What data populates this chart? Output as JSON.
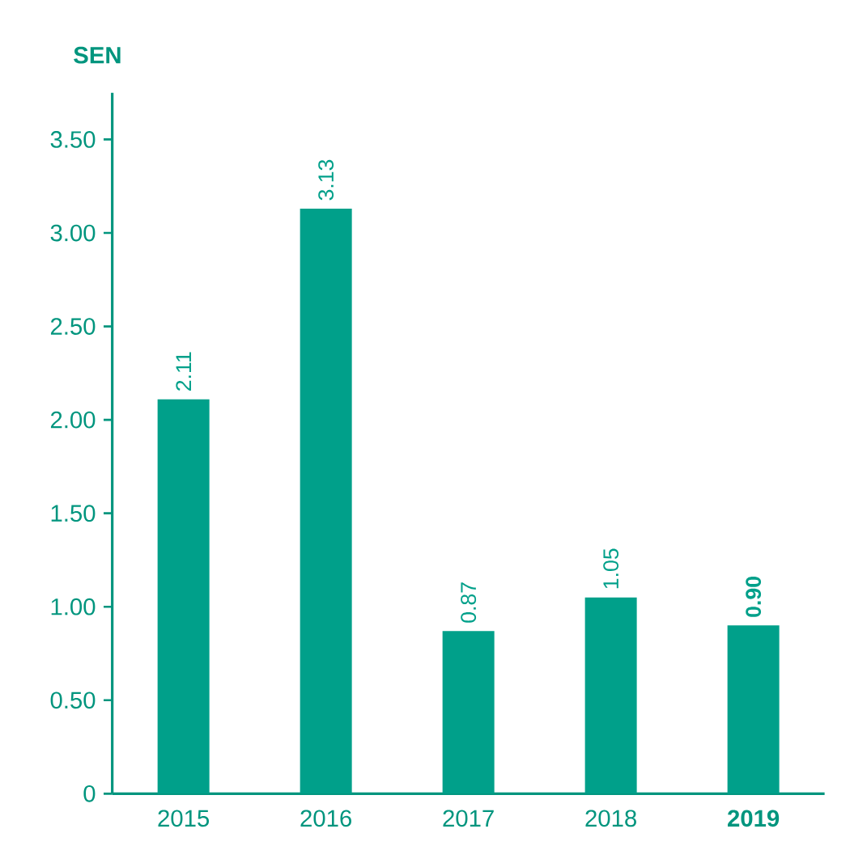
{
  "chart_data": {
    "type": "bar",
    "ylabel": "SEN",
    "categories": [
      "2015",
      "2016",
      "2017",
      "2018",
      "**2019**"
    ],
    "values": [
      2.11,
      3.13,
      0.87,
      1.05,
      0.9
    ],
    "value_labels": [
      "2.11",
      "3.13",
      "0.87",
      "1.05",
      "**0.90**"
    ],
    "color": "#00a08a",
    "ylim": [
      0,
      3.75
    ],
    "yticks": [
      0,
      {
        "value": 0.5,
        "label": "0.50"
      },
      {
        "value": 1.0,
        "label": "1.00"
      },
      {
        "value": 1.5,
        "label": "1.50"
      },
      {
        "value": 2.0,
        "label": "2.00"
      },
      {
        "value": 2.5,
        "label": "2.50"
      },
      {
        "value": 3.0,
        "label": "3.00"
      },
      {
        "value": 3.5,
        "label": "3.50"
      }
    ],
    "grid": false
  }
}
